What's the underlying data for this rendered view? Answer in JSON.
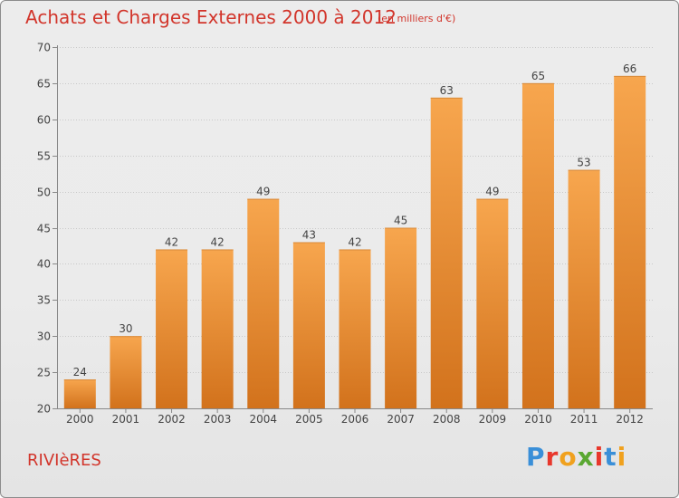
{
  "chart_data": {
    "type": "bar",
    "title": "Achats et Charges Externes 2000 à 2012",
    "subtitle": "(en milliers d'€)",
    "categories": [
      "2000",
      "2001",
      "2002",
      "2003",
      "2004",
      "2005",
      "2006",
      "2007",
      "2008",
      "2009",
      "2010",
      "2011",
      "2012"
    ],
    "values": [
      24,
      30,
      42,
      42,
      49,
      43,
      42,
      45,
      63,
      49,
      65,
      53,
      66
    ],
    "ylim": [
      20,
      70
    ],
    "yticks": [
      20,
      25,
      30,
      35,
      40,
      45,
      50,
      55,
      60,
      65,
      70
    ],
    "grid": true,
    "colors": {
      "bar_top": "#f7a64e",
      "bar_bottom": "#d2721c",
      "title": "#d2352b"
    }
  },
  "footer": {
    "town": "RIVIèRES",
    "brand_letters": [
      {
        "char": "P",
        "color": "#3a8fd8"
      },
      {
        "char": "r",
        "color": "#e8372c"
      },
      {
        "char": "o",
        "color": "#f0a11e"
      },
      {
        "char": "x",
        "color": "#5aa832"
      },
      {
        "char": "i",
        "color": "#e8372c"
      },
      {
        "char": "t",
        "color": "#3a8fd8"
      },
      {
        "char": "i",
        "color": "#f0a11e"
      }
    ]
  }
}
